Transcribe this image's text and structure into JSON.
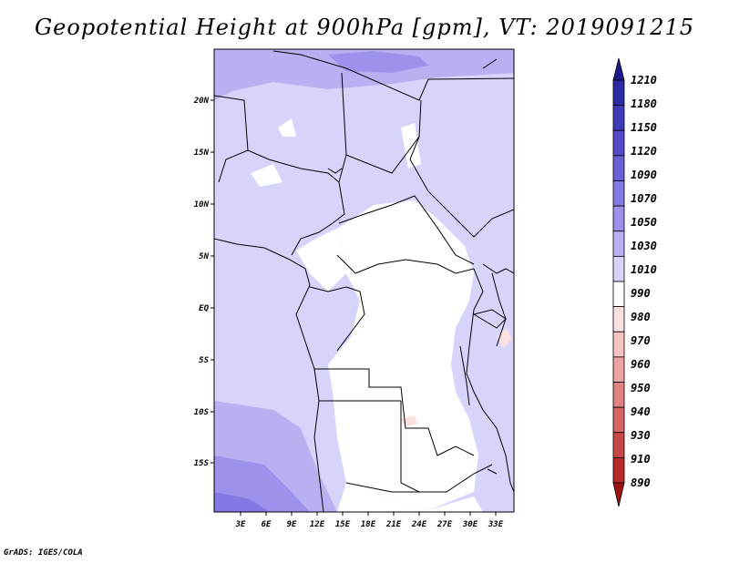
{
  "title": "Geopotential Height at 900hPa [gpm], VT: 2019091215",
  "footer": "GrADS: IGES/COLA",
  "map": {
    "lon_range": [
      0,
      35
    ],
    "lat_range": [
      -20,
      25
    ],
    "x_ticks": [
      "3E",
      "6E",
      "9E",
      "12E",
      "15E",
      "18E",
      "21E",
      "24E",
      "27E",
      "30E",
      "33E"
    ],
    "y_ticks": [
      "20N",
      "15N",
      "10N",
      "5N",
      "EQ",
      "5S",
      "10S",
      "15S"
    ]
  },
  "colorbar": {
    "labels": [
      "1210",
      "1180",
      "1150",
      "1120",
      "1090",
      "1070",
      "1050",
      "1030",
      "1010",
      "990",
      "980",
      "970",
      "960",
      "950",
      "940",
      "930",
      "910",
      "890"
    ],
    "colors": [
      "#1c1a8c",
      "#2d2aa6",
      "#3f3ab8",
      "#5449c8",
      "#6c60d8",
      "#8478e4",
      "#9c92ec",
      "#b7b1f2",
      "#d6d4fa",
      "#ffffff",
      "#fbe0e0",
      "#f6c2c2",
      "#eda3a3",
      "#e28383",
      "#d66565",
      "#c84747",
      "#b62a2a",
      "#9e1414"
    ]
  }
}
